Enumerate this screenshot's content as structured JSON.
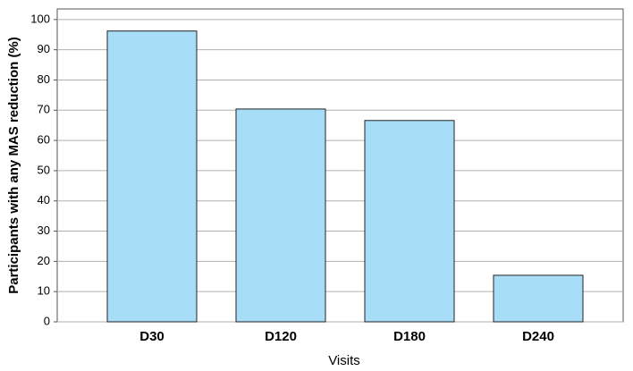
{
  "chart_data": {
    "type": "bar",
    "x_label": "Visits",
    "y_label": "Participants with any MAS reduction (%)",
    "categories": [
      "D30",
      "D120",
      "D180",
      "D240"
    ],
    "values": [
      96.2,
      70.4,
      66.6,
      15.4
    ],
    "color": "#a8ddf8",
    "ylim": [
      0,
      103.5
    ],
    "yticks": [
      0,
      10,
      20,
      30,
      40,
      50,
      60,
      70,
      80,
      90,
      100
    ],
    "grid": true
  }
}
